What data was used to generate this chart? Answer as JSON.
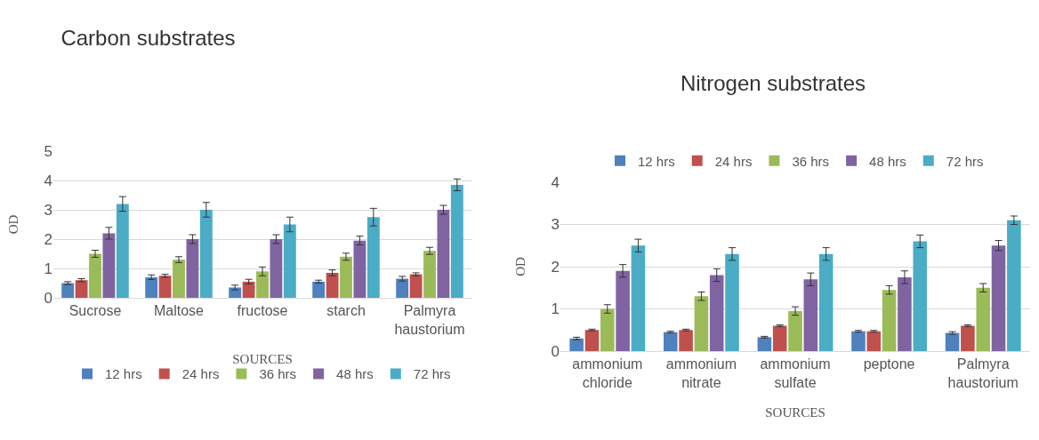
{
  "chart_data": [
    {
      "type": "bar",
      "title": "Carbon substrates",
      "xlabel": "SOURCES",
      "ylabel": "OD",
      "categories": [
        "Sucrose",
        "Maltose",
        "fructose",
        "starch",
        "Palmyra haustorium"
      ],
      "series": [
        {
          "name": "12 hrs",
          "color": "#4f81bd",
          "values": [
            0.5,
            0.7,
            0.35,
            0.55,
            0.65
          ],
          "errors": [
            0.05,
            0.08,
            0.08,
            0.05,
            0.08
          ]
        },
        {
          "name": "24 hrs",
          "color": "#c0504d",
          "values": [
            0.6,
            0.75,
            0.55,
            0.85,
            0.8
          ],
          "errors": [
            0.05,
            0.05,
            0.08,
            0.1,
            0.05
          ]
        },
        {
          "name": "36 hrs",
          "color": "#9bbb59",
          "values": [
            1.5,
            1.3,
            0.9,
            1.4,
            1.6
          ],
          "errors": [
            0.12,
            0.1,
            0.15,
            0.12,
            0.12
          ]
        },
        {
          "name": "48 hrs",
          "color": "#8064a2",
          "values": [
            2.2,
            2.0,
            2.0,
            1.95,
            3.0
          ],
          "errors": [
            0.2,
            0.15,
            0.15,
            0.15,
            0.15
          ]
        },
        {
          "name": "72 hrs",
          "color": "#4bacc6",
          "values": [
            3.2,
            3.0,
            2.5,
            2.75,
            3.85
          ],
          "errors": [
            0.25,
            0.25,
            0.25,
            0.3,
            0.2
          ]
        }
      ],
      "ylim": [
        0,
        5
      ],
      "yticks": [
        0,
        1,
        2,
        3,
        4,
        5
      ],
      "grid": "y",
      "legend": "bottom"
    },
    {
      "type": "bar",
      "title": "Nitrogen substrates",
      "xlabel": "SOURCES",
      "ylabel": "OD",
      "categories": [
        "ammonium chloride",
        "ammonium nitrate",
        "ammonium sulfate",
        "peptone",
        "Palmyra haustorium"
      ],
      "series": [
        {
          "name": "12 hrs",
          "color": "#4f81bd",
          "values": [
            0.3,
            0.45,
            0.33,
            0.47,
            0.43
          ],
          "errors": [
            0.03,
            0.02,
            0.02,
            0.02,
            0.03
          ]
        },
        {
          "name": "24 hrs",
          "color": "#c0504d",
          "values": [
            0.5,
            0.5,
            0.6,
            0.47,
            0.6
          ],
          "errors": [
            0.02,
            0.02,
            0.02,
            0.02,
            0.02
          ]
        },
        {
          "name": "36 hrs",
          "color": "#9bbb59",
          "values": [
            1.0,
            1.3,
            0.95,
            1.45,
            1.5
          ],
          "errors": [
            0.1,
            0.1,
            0.1,
            0.1,
            0.1
          ]
        },
        {
          "name": "48 hrs",
          "color": "#8064a2",
          "values": [
            1.9,
            1.8,
            1.7,
            1.75,
            2.5
          ],
          "errors": [
            0.15,
            0.15,
            0.15,
            0.15,
            0.12
          ]
        },
        {
          "name": "72 hrs",
          "color": "#4bacc6",
          "values": [
            2.5,
            2.3,
            2.3,
            2.6,
            3.1
          ],
          "errors": [
            0.15,
            0.15,
            0.15,
            0.15,
            0.1
          ]
        }
      ],
      "ylim": [
        0,
        4
      ],
      "yticks": [
        0,
        1,
        2,
        3,
        4
      ],
      "grid": "y",
      "legend": "top"
    }
  ]
}
